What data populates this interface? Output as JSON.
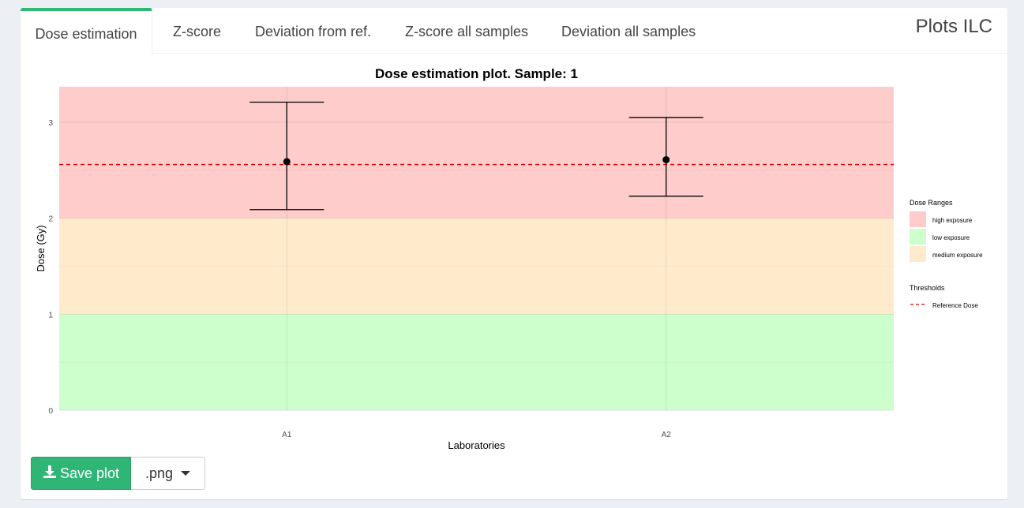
{
  "tabs": [
    {
      "label": "Dose estimation",
      "active": true
    },
    {
      "label": "Z-score",
      "active": false
    },
    {
      "label": "Deviation from ref.",
      "active": false
    },
    {
      "label": "Z-score all samples",
      "active": false
    },
    {
      "label": "Deviation all samples",
      "active": false
    }
  ],
  "box_title": "Plots ILC",
  "colors": {
    "accent": "#2eb872",
    "high": "#ffcccc",
    "medium": "#ffebcc",
    "low": "#ccffcc",
    "reference": "#e00000",
    "save_button": "#2fb575"
  },
  "save": {
    "label": "Save plot",
    "format": ".png",
    "icon": "download-icon"
  },
  "chart_data": {
    "type": "scatter",
    "title": "Dose estimation plot. Sample:  1",
    "xlabel": "Laboratories",
    "ylabel": "Dose (Gy)",
    "categories": [
      "A1",
      "A2"
    ],
    "points": [
      {
        "x": "A1",
        "y": 2.59,
        "ymin": 2.09,
        "ymax": 3.21
      },
      {
        "x": "A2",
        "y": 2.61,
        "ymin": 2.23,
        "ymax": 3.05
      }
    ],
    "ylim": [
      0,
      3.37
    ],
    "yticks": [
      0,
      1,
      2,
      3
    ],
    "bands": [
      {
        "name": "high exposure",
        "ymin": 2,
        "ymax": 3.37,
        "color": "#ffcccc"
      },
      {
        "name": "medium exposure",
        "ymin": 1,
        "ymax": 2,
        "color": "#ffebcc"
      },
      {
        "name": "low exposure",
        "ymin": 0,
        "ymax": 1,
        "color": "#ccffcc"
      }
    ],
    "reference_line": {
      "name": "Reference Dose",
      "y": 2.56
    },
    "legend": {
      "position": "right",
      "dose_title": "Dose Ranges",
      "dose_items": [
        "high exposure",
        "low exposure",
        "medium exposure"
      ],
      "threshold_title": "Thresholds",
      "threshold_items": [
        "Reference Dose"
      ]
    },
    "grid": true
  }
}
